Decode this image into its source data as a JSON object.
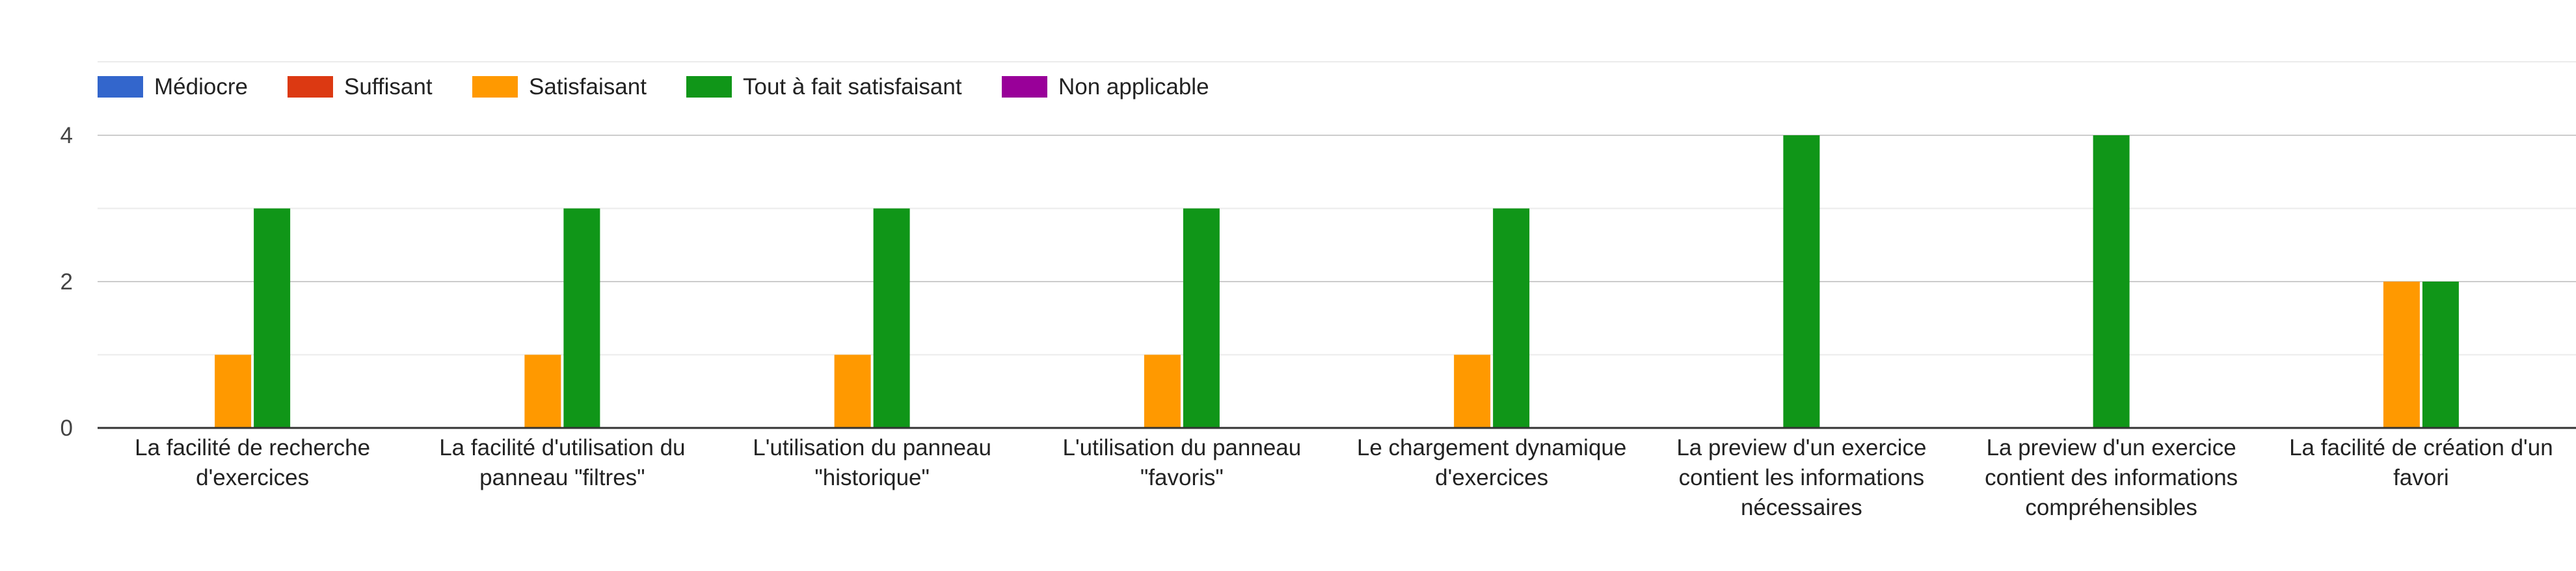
{
  "chart_data": {
    "type": "bar",
    "title": "",
    "xlabel": "",
    "ylabel": "",
    "ylim": [
      0,
      4.6
    ],
    "yticks": [
      0,
      2,
      4
    ],
    "grid": true,
    "legend_position": "top-left",
    "categories": [
      [
        "La facilité de recherche",
        "d'exercices"
      ],
      [
        "La facilité d'utilisation du",
        "panneau \"filtres\""
      ],
      [
        "L'utilisation du panneau",
        "\"historique\""
      ],
      [
        "L'utilisation du panneau",
        "\"favoris\""
      ],
      [
        "Le chargement dynamique",
        "d'exercices"
      ],
      [
        "La preview d'un exercice",
        "contient les informations",
        "nécessaires"
      ],
      [
        "La preview d'un exercice",
        "contient des informations",
        "compréhensibles"
      ],
      [
        "La facilité de création d'un",
        "favori"
      ]
    ],
    "series": [
      {
        "name": "Médiocre",
        "color": "#3366cc",
        "values": [
          0,
          0,
          0,
          0,
          0,
          0,
          0,
          0
        ]
      },
      {
        "name": "Suffisant",
        "color": "#dc3912",
        "values": [
          0,
          0,
          0,
          0,
          0,
          0,
          0,
          0
        ]
      },
      {
        "name": "Satisfaisant",
        "color": "#ff9900",
        "values": [
          1,
          1,
          1,
          1,
          1,
          0,
          0,
          2
        ]
      },
      {
        "name": "Tout à fait satisfaisant",
        "color": "#109618",
        "values": [
          3,
          3,
          3,
          3,
          3,
          4,
          4,
          2
        ]
      },
      {
        "name": "Non applicable",
        "color": "#990099",
        "values": [
          0,
          0,
          0,
          0,
          0,
          0,
          0,
          0
        ]
      }
    ]
  }
}
